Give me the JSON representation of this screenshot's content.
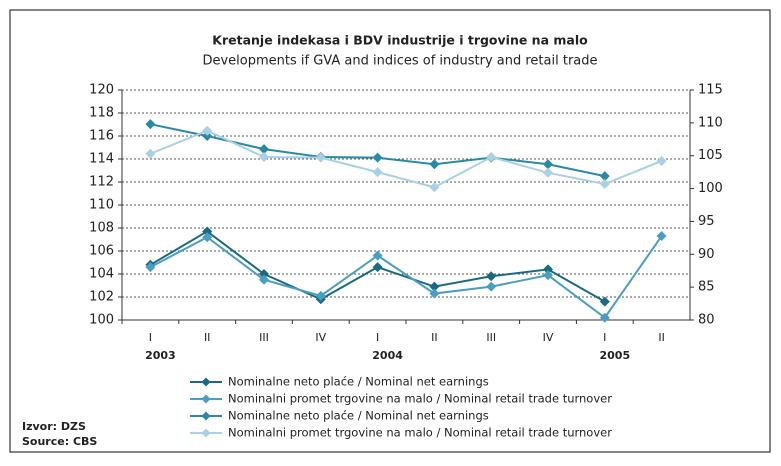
{
  "chart_data": {
    "type": "line",
    "title": "Kretanje indekasa i BDV industrije i trgovine na malo",
    "subtitle": "Developments if GVA and indices of industry and retail trade",
    "categories": [
      "I",
      "II",
      "III",
      "IV",
      "I",
      "II",
      "III",
      "IV",
      "I",
      "II"
    ],
    "year_labels": [
      "2003",
      null,
      null,
      null,
      "2004",
      null,
      null,
      null,
      "2005",
      null
    ],
    "series": [
      {
        "name": "Nominalne neto plaće / Nominal net earnings",
        "color": "#1b6a80",
        "axis": "y",
        "values": [
          104.8,
          107.7,
          104.0,
          101.8,
          104.6,
          102.9,
          103.8,
          104.4,
          101.6,
          null
        ]
      },
      {
        "name": "Nominalni promet trgovine na malo / Nominal retail trade turnover",
        "color": "#4c9ec0",
        "axis": "y",
        "values": [
          104.6,
          107.2,
          103.5,
          102.1,
          105.6,
          102.3,
          102.9,
          103.9,
          100.2,
          107.3
        ]
      },
      {
        "name": "Nominalne neto plaće / Nominal net earnings",
        "color": "#2a8aa6",
        "axis": "y2",
        "values": [
          109.8,
          108.0,
          106.0,
          104.8,
          104.7,
          103.7,
          104.7,
          103.7,
          101.9,
          null
        ]
      },
      {
        "name": "Nominalni promet trgovine na malo / Nominal retail trade turnover",
        "color": "#a9d0e4",
        "axis": "y2",
        "values": [
          105.3,
          108.8,
          104.8,
          104.7,
          102.5,
          100.2,
          104.8,
          102.4,
          100.7,
          104.2
        ]
      }
    ],
    "ylim": [
      100,
      120
    ],
    "yticks": [
      100,
      102,
      104,
      106,
      108,
      110,
      112,
      114,
      116,
      118,
      120
    ],
    "y2lim": [
      80,
      115
    ],
    "y2ticks": [
      80,
      85,
      90,
      95,
      100,
      105,
      110,
      115
    ],
    "grid": true,
    "source_labels": [
      "Izvor: DZS",
      "Source: CBS"
    ]
  }
}
